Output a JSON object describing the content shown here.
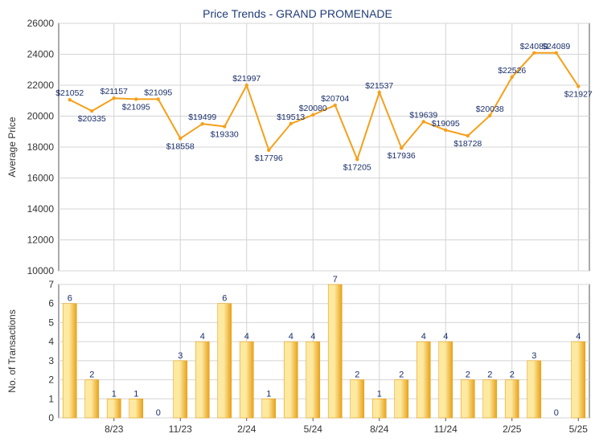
{
  "title": "Price Trends - GRAND PROMENADE",
  "colors": {
    "line": "#f5a01a",
    "bar_light": "#fde9a0",
    "bar_dark": "#e8a21a",
    "grid": "#d4d4d4",
    "text": "#333333",
    "title": "#1f3c78",
    "label": "#1a2f6b"
  },
  "chart_data": [
    {
      "type": "line",
      "ylabel": "Average Price",
      "ylim": [
        10000,
        26000
      ],
      "yticks": [
        10000,
        12000,
        14000,
        16000,
        18000,
        20000,
        22000,
        24000,
        26000
      ],
      "grid": true,
      "series": [
        {
          "points": [
            {
              "x": 1,
              "y": 21052,
              "label": "$21052"
            },
            {
              "x": 2,
              "y": 20335,
              "label": "$20335"
            },
            {
              "x": 3,
              "y": 21157,
              "label": "$21157"
            },
            {
              "x": 4,
              "y": 21095,
              "label": "$21095"
            },
            {
              "x": 5,
              "y": 21095,
              "label": "$21095"
            },
            {
              "x": 6,
              "y": 18558,
              "label": "$18558"
            },
            {
              "x": 7,
              "y": 19499,
              "label": "$19499"
            },
            {
              "x": 8,
              "y": 19330,
              "label": "$19330"
            },
            {
              "x": 9,
              "y": 21997,
              "label": "$21997"
            },
            {
              "x": 10,
              "y": 17796,
              "label": "$17796"
            },
            {
              "x": 11,
              "y": 19513,
              "label": "$19513"
            },
            {
              "x": 12,
              "y": 20080,
              "label": "$20080"
            },
            {
              "x": 13,
              "y": 20704,
              "label": "$20704"
            },
            {
              "x": 14,
              "y": 17205,
              "label": "$17205"
            },
            {
              "x": 15,
              "y": 21537,
              "label": "$21537"
            },
            {
              "x": 16,
              "y": 17936,
              "label": "$17936"
            },
            {
              "x": 17,
              "y": 19639,
              "label": "$19639"
            },
            {
              "x": 18,
              "y": 19095,
              "label": "$19095"
            },
            {
              "x": 19,
              "y": 18728,
              "label": "$18728"
            },
            {
              "x": 20,
              "y": 20038,
              "label": "$20038"
            },
            {
              "x": 21,
              "y": 22526,
              "label": "$22526"
            },
            {
              "x": 22,
              "y": 24089,
              "label": "$24089"
            },
            {
              "x": 23,
              "y": 24089,
              "label": "$24089"
            },
            {
              "x": 24,
              "y": 21927,
              "label": "$21927"
            }
          ]
        }
      ]
    },
    {
      "type": "bar",
      "ylabel": "No. of Transactions",
      "ylim": [
        0,
        7
      ],
      "yticks": [
        0,
        1,
        2,
        3,
        4,
        5,
        6,
        7
      ],
      "grid": true,
      "values": [
        6,
        2,
        1,
        1,
        0,
        3,
        4,
        6,
        4,
        1,
        4,
        4,
        7,
        2,
        1,
        2,
        4,
        4,
        2,
        2,
        2,
        3,
        0,
        4
      ],
      "xtick_labels": [
        {
          "at": 2.5,
          "label": "8/23"
        },
        {
          "at": 5.5,
          "label": "11/23"
        },
        {
          "at": 8.5,
          "label": "2/24"
        },
        {
          "at": 11.5,
          "label": "5/24"
        },
        {
          "at": 14.5,
          "label": "8/24"
        },
        {
          "at": 17.5,
          "label": "11/24"
        },
        {
          "at": 20.5,
          "label": "2/25"
        },
        {
          "at": 23.5,
          "label": "5/25"
        }
      ]
    }
  ]
}
